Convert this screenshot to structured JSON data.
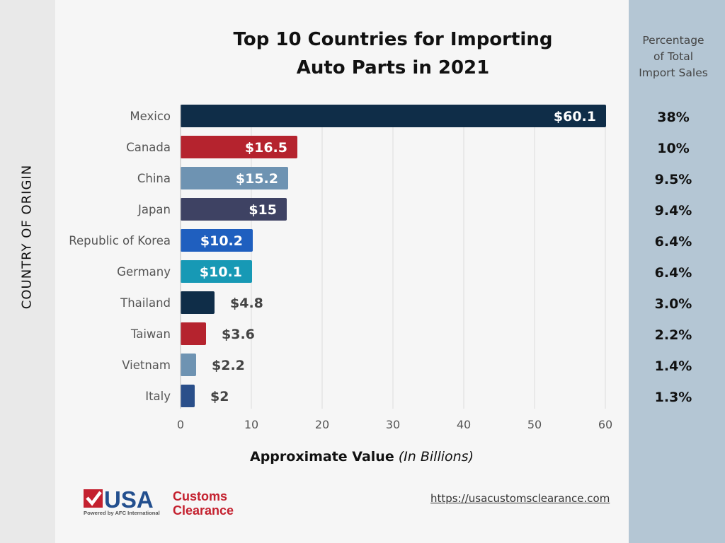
{
  "chart_data": {
    "type": "bar",
    "orientation": "horizontal",
    "title": "Top 10 Countries for Importing Auto Parts in 2021",
    "title_lines": [
      "Top 10 Countries for Importing",
      "Auto Parts in 2021"
    ],
    "ylabel": "COUNTRY OF ORIGIN",
    "xlabel_main": "Approximate Value",
    "xlabel_unit": "(In Billions)",
    "xlim": [
      0,
      60
    ],
    "xticks": [
      0,
      10,
      20,
      30,
      40,
      50,
      60
    ],
    "grid": true,
    "categories": [
      "Mexico",
      "Canada",
      "China",
      "Japan",
      "Republic of Korea",
      "Germany",
      "Thailand",
      "Taiwan",
      "Vietnam",
      "Italy"
    ],
    "values": [
      60.1,
      16.5,
      15.2,
      15,
      10.2,
      10.1,
      4.8,
      3.6,
      2.2,
      2
    ],
    "value_labels": [
      "$60.1",
      "$16.5",
      "$15.2",
      "$15",
      "$10.2",
      "$10.1",
      "$4.8",
      "$3.6",
      "$2.2",
      "$2"
    ],
    "colors": [
      "#0f2d48",
      "#b5232e",
      "#6e93b2",
      "#3e4263",
      "#1f5fbf",
      "#1799b5",
      "#0f2d48",
      "#b5232e",
      "#6e93b2",
      "#2a4f8a"
    ],
    "percentage_header": [
      "Percentage",
      "of Total",
      "Import Sales"
    ],
    "percentages": [
      "38%",
      "10%",
      "9.5%",
      "9.4%",
      "6.4%",
      "6.4%",
      "3.0%",
      "2.2%",
      "1.4%",
      "1.3%"
    ]
  },
  "footer": {
    "url": "https://usacustomsclearance.com",
    "logo": {
      "main": "USA",
      "side1": "Customs",
      "side2": "Clearance",
      "tagline": "Powered by AFC International"
    }
  }
}
